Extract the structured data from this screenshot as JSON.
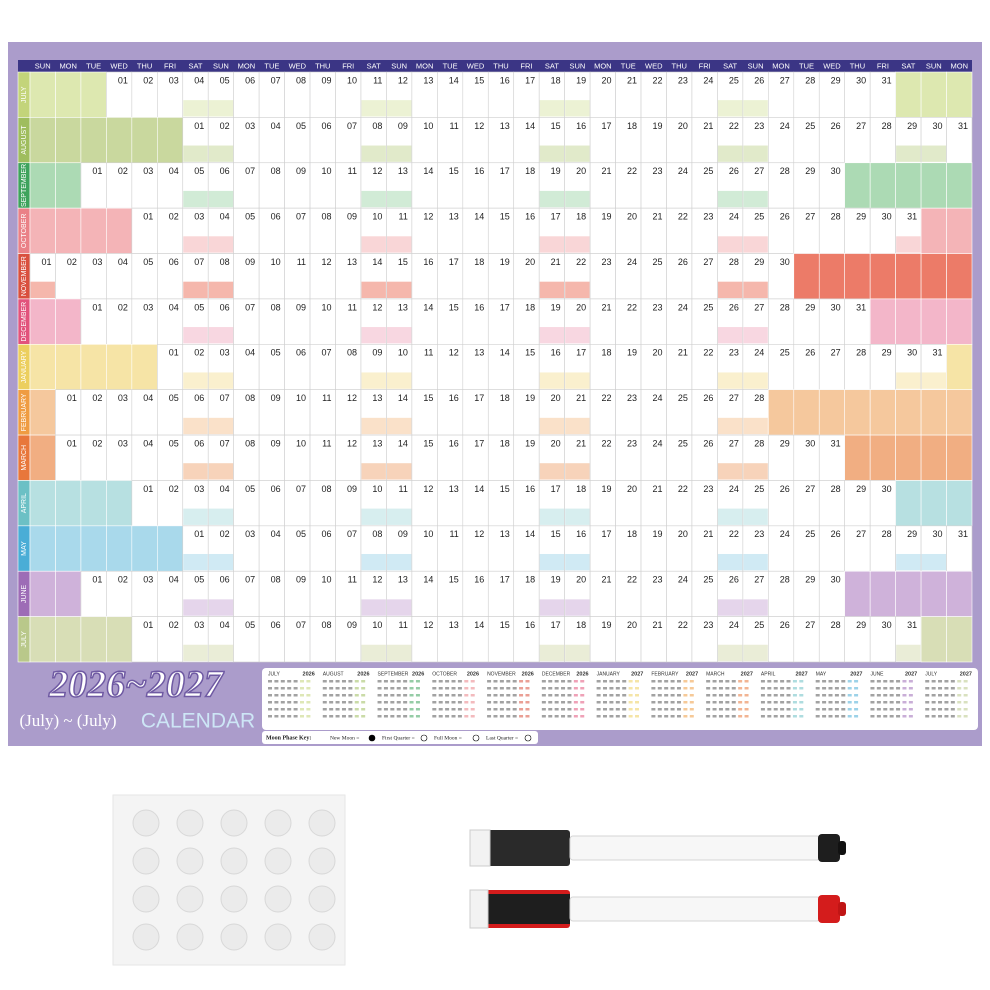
{
  "title": "2026~2027",
  "subtitle": "(July) ~ (July)",
  "calendar_label": "CALENDAR",
  "weekdays": [
    "SUN",
    "MON",
    "TUE",
    "WED",
    "THU",
    "FRI",
    "SAT"
  ],
  "months": [
    {
      "name": "JULY",
      "start": 3,
      "color": "#dde8b0",
      "label_color": "#c3d47a",
      "days": [
        "01",
        "02",
        "03",
        "04",
        "05",
        "06",
        "07",
        "08",
        "09",
        "10",
        "11",
        "12",
        "13",
        "14",
        "15",
        "16",
        "17",
        "18",
        "19",
        "20",
        "21",
        "22",
        "23",
        "24",
        "25",
        "26",
        "27",
        "28",
        "29",
        "30",
        "31"
      ]
    },
    {
      "name": "AUGUST",
      "start": 6,
      "color": "#c9d89e",
      "label_color": "#9fbd5e",
      "days": [
        "01",
        "02",
        "03",
        "04",
        "05",
        "06",
        "07",
        "08",
        "09",
        "10",
        "11",
        "12",
        "13",
        "14",
        "15",
        "16",
        "17",
        "18",
        "19",
        "20",
        "21",
        "22",
        "23",
        "24",
        "25",
        "26",
        "27",
        "28",
        "29",
        "30",
        "31"
      ]
    },
    {
      "name": "SEPTEMBER",
      "start": 2,
      "color": "#acdab4",
      "label_color": "#3ea35c",
      "days": [
        "01",
        "02",
        "03",
        "04",
        "05",
        "06",
        "07",
        "08",
        "09",
        "10",
        "11",
        "12",
        "13",
        "14",
        "15",
        "16",
        "17",
        "18",
        "19",
        "20",
        "21",
        "22",
        "23",
        "24",
        "25",
        "26",
        "27",
        "28",
        "29",
        "30"
      ]
    },
    {
      "name": "OCTOBER",
      "start": 4,
      "color": "#f4b4b7",
      "label_color": "#ea8187",
      "days": [
        "01",
        "02",
        "03",
        "04",
        "05",
        "06",
        "07",
        "08",
        "09",
        "10",
        "11",
        "12",
        "13",
        "14",
        "15",
        "16",
        "17",
        "18",
        "19",
        "20",
        "21",
        "22",
        "23",
        "24",
        "25",
        "26",
        "27",
        "28",
        "29",
        "30",
        "31"
      ]
    },
    {
      "name": "NOVEMBER",
      "start": 0,
      "color": "#ec7b68",
      "label_color": "#d9503e",
      "days": [
        "01",
        "02",
        "03",
        "04",
        "05",
        "06",
        "07",
        "08",
        "09",
        "10",
        "11",
        "12",
        "13",
        "14",
        "15",
        "16",
        "17",
        "18",
        "19",
        "20",
        "21",
        "22",
        "23",
        "24",
        "25",
        "26",
        "27",
        "28",
        "29",
        "30"
      ]
    },
    {
      "name": "DECEMBER",
      "start": 2,
      "color": "#f3b6c9",
      "label_color": "#e2537c",
      "days": [
        "01",
        "02",
        "03",
        "04",
        "05",
        "06",
        "07",
        "08",
        "09",
        "10",
        "11",
        "12",
        "13",
        "14",
        "15",
        "16",
        "17",
        "18",
        "19",
        "20",
        "21",
        "22",
        "23",
        "24",
        "25",
        "26",
        "27",
        "28",
        "29",
        "30",
        "31"
      ]
    },
    {
      "name": "JANUARY",
      "start": 5,
      "color": "#f6e4a6",
      "label_color": "#eccf5e",
      "days": [
        "01",
        "02",
        "03",
        "04",
        "05",
        "06",
        "07",
        "08",
        "09",
        "10",
        "11",
        "12",
        "13",
        "14",
        "15",
        "16",
        "17",
        "18",
        "19",
        "20",
        "21",
        "22",
        "23",
        "24",
        "25",
        "26",
        "27",
        "28",
        "29",
        "30",
        "31"
      ]
    },
    {
      "name": "FEBRUARY",
      "start": 1,
      "color": "#f5c89d",
      "label_color": "#ef9c42",
      "days": [
        "01",
        "02",
        "03",
        "04",
        "05",
        "06",
        "07",
        "08",
        "09",
        "10",
        "11",
        "12",
        "13",
        "14",
        "15",
        "16",
        "17",
        "18",
        "19",
        "20",
        "21",
        "22",
        "23",
        "24",
        "25",
        "26",
        "27",
        "28"
      ]
    },
    {
      "name": "MARCH",
      "start": 1,
      "color": "#f1ae82",
      "label_color": "#e8773b",
      "days": [
        "01",
        "02",
        "03",
        "04",
        "05",
        "06",
        "07",
        "08",
        "09",
        "10",
        "11",
        "12",
        "13",
        "14",
        "15",
        "16",
        "17",
        "18",
        "19",
        "20",
        "21",
        "22",
        "23",
        "24",
        "25",
        "26",
        "27",
        "28",
        "29",
        "30",
        "31"
      ]
    },
    {
      "name": "APRIL",
      "start": 4,
      "color": "#b7e0e1",
      "label_color": "#6cc0c5",
      "days": [
        "01",
        "02",
        "03",
        "04",
        "05",
        "06",
        "07",
        "08",
        "09",
        "10",
        "11",
        "12",
        "13",
        "14",
        "15",
        "16",
        "17",
        "18",
        "19",
        "20",
        "21",
        "22",
        "23",
        "24",
        "25",
        "26",
        "27",
        "28",
        "29",
        "30"
      ]
    },
    {
      "name": "MAY",
      "start": 6,
      "color": "#a9d9eb",
      "label_color": "#4aadd6",
      "days": [
        "01",
        "02",
        "03",
        "04",
        "05",
        "06",
        "07",
        "08",
        "09",
        "10",
        "11",
        "12",
        "13",
        "14",
        "15",
        "16",
        "17",
        "18",
        "19",
        "20",
        "21",
        "22",
        "23",
        "24",
        "25",
        "26",
        "27",
        "28",
        "29",
        "30",
        "31"
      ]
    },
    {
      "name": "JUNE",
      "start": 2,
      "color": "#cfb2da",
      "label_color": "#9d6cb6",
      "days": [
        "01",
        "02",
        "03",
        "04",
        "05",
        "06",
        "07",
        "08",
        "09",
        "10",
        "11",
        "12",
        "13",
        "14",
        "15",
        "16",
        "17",
        "18",
        "19",
        "20",
        "21",
        "22",
        "23",
        "24",
        "25",
        "26",
        "27",
        "28",
        "29",
        "30"
      ]
    },
    {
      "name": "JULY",
      "start": 4,
      "color": "#d8deb6",
      "label_color": "#b9c88a",
      "days": [
        "01",
        "02",
        "03",
        "04",
        "05",
        "06",
        "07",
        "08",
        "09",
        "10",
        "11",
        "12",
        "13",
        "14",
        "15",
        "16",
        "17",
        "18",
        "19",
        "20",
        "21",
        "22",
        "23",
        "24",
        "25",
        "26",
        "27",
        "28",
        "29",
        "30",
        "31"
      ]
    }
  ],
  "mini_calendars": [
    {
      "name": "JULY",
      "year": "2026"
    },
    {
      "name": "AUGUST",
      "year": "2026"
    },
    {
      "name": "SEPTEMBER",
      "year": "2026"
    },
    {
      "name": "OCTOBER",
      "year": "2026"
    },
    {
      "name": "NOVEMBER",
      "year": "2026"
    },
    {
      "name": "DECEMBER",
      "year": "2026"
    },
    {
      "name": "JANUARY",
      "year": "2027"
    },
    {
      "name": "FEBRUARY",
      "year": "2027"
    },
    {
      "name": "MARCH",
      "year": "2027"
    },
    {
      "name": "APRIL",
      "year": "2027"
    },
    {
      "name": "MAY",
      "year": "2027"
    },
    {
      "name": "JUNE",
      "year": "2027"
    },
    {
      "name": "JULY",
      "year": "2027"
    }
  ],
  "moon_key": {
    "title": "Moon Phase Key:",
    "items": [
      "New Moon =",
      "First Quarter =",
      "Full Moon =",
      "Last Quarter ="
    ]
  }
}
